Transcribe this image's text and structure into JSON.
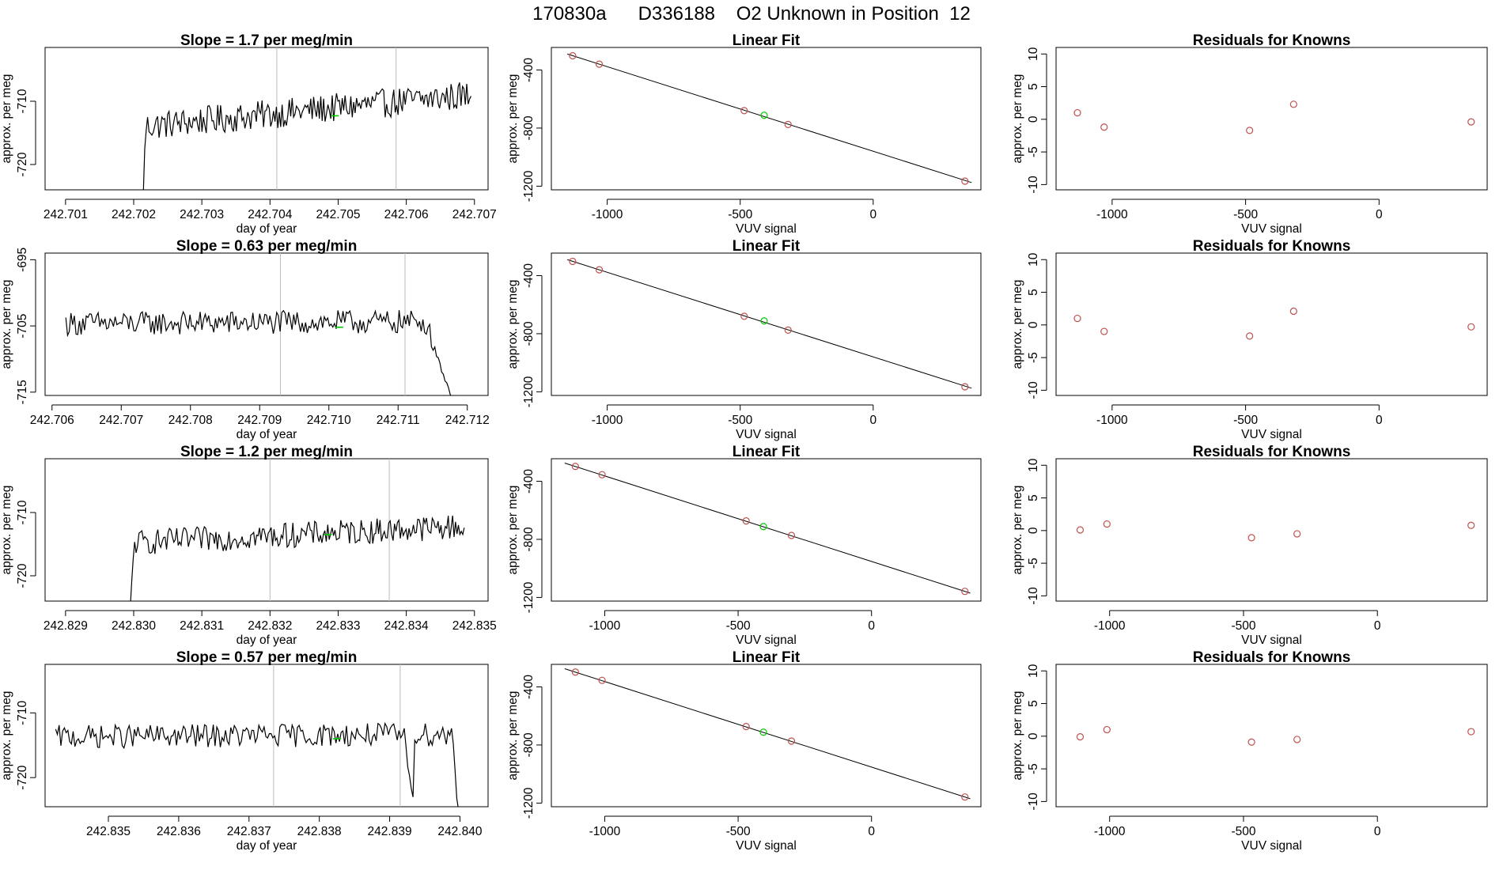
{
  "header": {
    "run_id": "170830a",
    "sample_id": "D336188",
    "description": "O2 Unknown in Position  12"
  },
  "colors": {
    "trace": "#000000",
    "marker_known": "#c0504d",
    "marker_unknown": "#00cc00",
    "vline": "#bbbbbb",
    "fit_line": "#000000"
  },
  "chart_data": [
    {
      "row": 1,
      "panels": [
        {
          "type": "line",
          "title": "Slope =  1.7  per meg/min",
          "xlabel": "day of year",
          "ylabel": "approx. per meg",
          "xlim": [
            242.7007,
            242.7072
          ],
          "ylim": [
            -724,
            -701.5
          ],
          "xticks": [
            242.701,
            242.702,
            242.703,
            242.704,
            242.705,
            242.706,
            242.707
          ],
          "xtick_labels": [
            "242.701",
            "242.702",
            "242.703",
            "242.704",
            "242.705",
            "242.706",
            "242.707"
          ],
          "yticks": [
            -720,
            -710
          ],
          "ytick_labels": [
            "-720",
            "-710"
          ],
          "vlines": [
            242.7041,
            242.70585
          ],
          "mean_point": {
            "x": 242.70495,
            "y": -712.3
          },
          "trace": {
            "x_start": 242.70212,
            "x_end": 242.70695,
            "base": -711.5,
            "slope": 5.0,
            "noise": 2.3,
            "rise_from": -730,
            "dips": []
          }
        },
        {
          "type": "scatter",
          "title": "Linear Fit",
          "xlabel": "VUV signal",
          "ylabel": "approx. per meg",
          "xlim": [
            -1210,
            405
          ],
          "ylim": [
            -1225,
            -245
          ],
          "xticks": [
            -1000,
            -500,
            0
          ],
          "xtick_labels": [
            "-1000",
            "-500",
            "0"
          ],
          "yticks": [
            -1200,
            -800,
            -400
          ],
          "ytick_labels": [
            "-1200",
            "-800",
            "-400"
          ],
          "fit": {
            "x": [
              -1150,
              370
            ],
            "y": [
              -290,
              -1175
            ]
          },
          "known_points": [
            {
              "x": -1130,
              "y": -302
            },
            {
              "x": -1030,
              "y": -360
            },
            {
              "x": -485,
              "y": -680
            },
            {
              "x": -320,
              "y": -775
            },
            {
              "x": 345,
              "y": -1165
            }
          ],
          "unknown_point": {
            "x": -410,
            "y": -712
          }
        },
        {
          "type": "scatter",
          "title": "Residuals for Knowns",
          "xlabel": "VUV signal",
          "ylabel": "approx. per meg",
          "xlim": [
            -1210,
            405
          ],
          "ylim": [
            -10.8,
            11
          ],
          "xticks": [
            -1000,
            -500,
            0
          ],
          "xtick_labels": [
            "-1000",
            "-500",
            "0"
          ],
          "yticks": [
            -10,
            -5,
            0,
            5,
            10
          ],
          "ytick_labels": [
            "-10",
            "-5",
            "0",
            "5",
            "10"
          ],
          "known_points": [
            {
              "x": -1130,
              "y": 1.0
            },
            {
              "x": -1030,
              "y": -1.2
            },
            {
              "x": -485,
              "y": -1.7
            },
            {
              "x": -320,
              "y": 2.3
            },
            {
              "x": 345,
              "y": -0.4
            }
          ]
        }
      ]
    },
    {
      "row": 2,
      "panels": [
        {
          "type": "line",
          "title": "Slope =  0.63  per meg/min",
          "xlabel": "day of year",
          "ylabel": "approx. per meg",
          "xlim": [
            242.7059,
            242.7123
          ],
          "ylim": [
            -715.5,
            -694
          ],
          "xticks": [
            242.706,
            242.707,
            242.708,
            242.709,
            242.71,
            242.711,
            242.712
          ],
          "xtick_labels": [
            "242.706",
            "242.707",
            "242.708",
            "242.709",
            "242.710",
            "242.711",
            "242.712"
          ],
          "yticks": [
            -715,
            -705,
            -695
          ],
          "ytick_labels": [
            "-715",
            "-705",
            "-695"
          ],
          "vlines": [
            242.7093,
            242.7111
          ],
          "mean_point": {
            "x": 242.71015,
            "y": -705.2
          },
          "trace": {
            "x_start": 242.7062,
            "x_end": 242.71185,
            "base": -704.5,
            "slope": 0.3,
            "noise": 1.8,
            "rise_from": null,
            "dips": [
              {
                "from": 242.7114,
                "to": 242.71185,
                "y": -716
              }
            ]
          }
        },
        {
          "type": "scatter",
          "title": "Linear Fit",
          "xlabel": "VUV signal",
          "ylabel": "approx. per meg",
          "xlim": [
            -1210,
            405
          ],
          "ylim": [
            -1225,
            -245
          ],
          "xticks": [
            -1000,
            -500,
            0
          ],
          "xtick_labels": [
            "-1000",
            "-500",
            "0"
          ],
          "yticks": [
            -1200,
            -800,
            -400
          ],
          "ytick_labels": [
            "-1200",
            "-800",
            "-400"
          ],
          "fit": {
            "x": [
              -1150,
              370
            ],
            "y": [
              -290,
              -1175
            ]
          },
          "known_points": [
            {
              "x": -1130,
              "y": -302
            },
            {
              "x": -1030,
              "y": -360
            },
            {
              "x": -485,
              "y": -680
            },
            {
              "x": -320,
              "y": -775
            },
            {
              "x": 345,
              "y": -1165
            }
          ],
          "unknown_point": {
            "x": -410,
            "y": -712
          }
        },
        {
          "type": "scatter",
          "title": "Residuals for Knowns",
          "xlabel": "VUV signal",
          "ylabel": "approx. per meg",
          "xlim": [
            -1210,
            405
          ],
          "ylim": [
            -10.8,
            11
          ],
          "xticks": [
            -1000,
            -500,
            0
          ],
          "xtick_labels": [
            "-1000",
            "-500",
            "0"
          ],
          "yticks": [
            -10,
            -5,
            0,
            5,
            10
          ],
          "ytick_labels": [
            "-10",
            "-5",
            "0",
            "5",
            "10"
          ],
          "known_points": [
            {
              "x": -1130,
              "y": 1.0
            },
            {
              "x": -1030,
              "y": -1.0
            },
            {
              "x": -485,
              "y": -1.7
            },
            {
              "x": -320,
              "y": 2.1
            },
            {
              "x": 345,
              "y": -0.3
            }
          ]
        }
      ]
    },
    {
      "row": 3,
      "panels": [
        {
          "type": "line",
          "title": "Slope =  1.2  per meg/min",
          "xlabel": "day of year",
          "ylabel": "approx. per meg",
          "xlim": [
            242.8287,
            242.8352
          ],
          "ylim": [
            -724,
            -701.5
          ],
          "xticks": [
            242.829,
            242.83,
            242.831,
            242.832,
            242.833,
            242.834,
            242.835
          ],
          "xtick_labels": [
            "242.829",
            "242.830",
            "242.831",
            "242.832",
            "242.833",
            "242.834",
            "242.835"
          ],
          "yticks": [
            -720,
            -710
          ],
          "ytick_labels": [
            "-720",
            "-710"
          ],
          "vlines": [
            242.832,
            242.83375
          ],
          "mean_point": {
            "x": 242.83285,
            "y": -713.5
          },
          "trace": {
            "x_start": 242.82995,
            "x_end": 242.83485,
            "base": -713.5,
            "slope": 2.6,
            "noise": 2.0,
            "rise_from": -725,
            "dips": []
          }
        },
        {
          "type": "scatter",
          "title": "Linear Fit",
          "xlabel": "VUV signal",
          "ylabel": "approx. per meg",
          "xlim": [
            -1200,
            410
          ],
          "ylim": [
            -1225,
            -245
          ],
          "xticks": [
            -1000,
            -500,
            0
          ],
          "xtick_labels": [
            "-1000",
            "-500",
            "0"
          ],
          "yticks": [
            -1200,
            -800,
            -400
          ],
          "ytick_labels": [
            "-1200",
            "-800",
            "-400"
          ],
          "fit": {
            "x": [
              -1150,
              370
            ],
            "y": [
              -275,
              -1170
            ]
          },
          "known_points": [
            {
              "x": -1110,
              "y": -298
            },
            {
              "x": -1010,
              "y": -355
            },
            {
              "x": -470,
              "y": -673
            },
            {
              "x": -300,
              "y": -773
            },
            {
              "x": 350,
              "y": -1158
            }
          ],
          "unknown_point": {
            "x": -405,
            "y": -712
          }
        },
        {
          "type": "scatter",
          "title": "Residuals for Knowns",
          "xlabel": "VUV signal",
          "ylabel": "approx. per meg",
          "xlim": [
            -1200,
            410
          ],
          "ylim": [
            -10.8,
            11
          ],
          "xticks": [
            -1000,
            -500,
            0
          ],
          "xtick_labels": [
            "-1000",
            "-500",
            "0"
          ],
          "yticks": [
            -10,
            -5,
            0,
            5,
            10
          ],
          "ytick_labels": [
            "-10",
            "-5",
            "0",
            "5",
            "10"
          ],
          "known_points": [
            {
              "x": -1110,
              "y": 0.1
            },
            {
              "x": -1010,
              "y": 1.0
            },
            {
              "x": -470,
              "y": -1.1
            },
            {
              "x": -300,
              "y": -0.5
            },
            {
              "x": 350,
              "y": 0.8
            }
          ]
        }
      ]
    },
    {
      "row": 4,
      "panels": [
        {
          "type": "line",
          "title": "Slope =  0.57  per meg/min",
          "xlabel": "day of year",
          "ylabel": "approx. per meg",
          "xlim": [
            242.8341,
            242.8404
          ],
          "ylim": [
            -724.5,
            -702.5
          ],
          "xticks": [
            242.835,
            242.836,
            242.837,
            242.838,
            242.839,
            242.84
          ],
          "xtick_labels": [
            "242.835",
            "242.836",
            "242.837",
            "242.838",
            "242.839",
            "242.840"
          ],
          "yticks": [
            -720,
            -710
          ],
          "ytick_labels": [
            "-720",
            "-710"
          ],
          "vlines": [
            242.83735,
            242.83915
          ],
          "mean_point": {
            "x": 242.83825,
            "y": -714.0
          },
          "trace": {
            "x_start": 242.83425,
            "x_end": 242.83998,
            "base": -713.5,
            "slope": 0.4,
            "noise": 1.8,
            "rise_from": null,
            "dips": [
              {
                "from": 242.8392,
                "to": 242.83935,
                "y": -723
              },
              {
                "from": 242.8399,
                "to": 242.83998,
                "y": -725
              }
            ]
          }
        },
        {
          "type": "scatter",
          "title": "Linear Fit",
          "xlabel": "VUV signal",
          "ylabel": "approx. per meg",
          "xlim": [
            -1200,
            410
          ],
          "ylim": [
            -1225,
            -245
          ],
          "xticks": [
            -1000,
            -500,
            0
          ],
          "xtick_labels": [
            "-1000",
            "-500",
            "0"
          ],
          "yticks": [
            -1200,
            -800,
            -400
          ],
          "ytick_labels": [
            "-1200",
            "-800",
            "-400"
          ],
          "fit": {
            "x": [
              -1150,
              370
            ],
            "y": [
              -275,
              -1170
            ]
          },
          "known_points": [
            {
              "x": -1110,
              "y": -298
            },
            {
              "x": -1010,
              "y": -355
            },
            {
              "x": -470,
              "y": -673
            },
            {
              "x": -300,
              "y": -773
            },
            {
              "x": 350,
              "y": -1158
            }
          ],
          "unknown_point": {
            "x": -405,
            "y": -712
          }
        },
        {
          "type": "scatter",
          "title": "Residuals for Knowns",
          "xlabel": "VUV signal",
          "ylabel": "approx. per meg",
          "xlim": [
            -1200,
            410
          ],
          "ylim": [
            -10.8,
            11
          ],
          "xticks": [
            -1000,
            -500,
            0
          ],
          "xtick_labels": [
            "-1000",
            "-500",
            "0"
          ],
          "yticks": [
            -10,
            -5,
            0,
            5,
            10
          ],
          "ytick_labels": [
            "-10",
            "-5",
            "0",
            "5",
            "10"
          ],
          "known_points": [
            {
              "x": -1110,
              "y": -0.1
            },
            {
              "x": -1010,
              "y": 1.0
            },
            {
              "x": -470,
              "y": -0.9
            },
            {
              "x": -300,
              "y": -0.5
            },
            {
              "x": 350,
              "y": 0.7
            }
          ]
        }
      ]
    }
  ]
}
